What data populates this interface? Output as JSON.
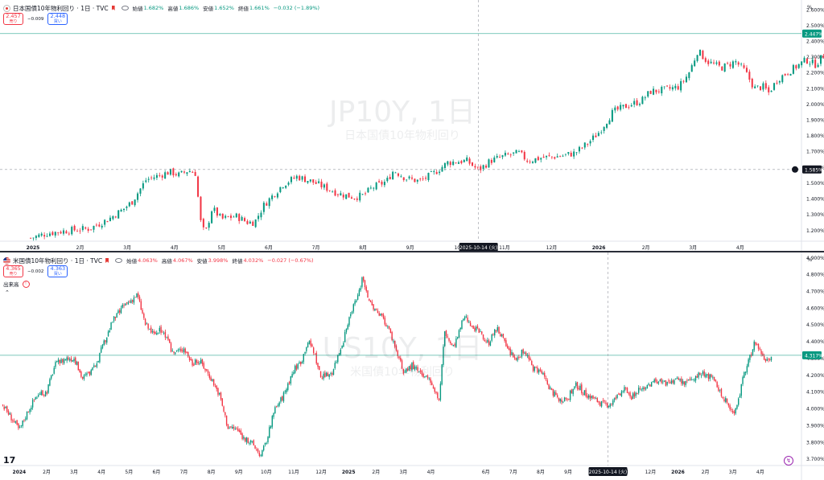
{
  "top_pane": {
    "title": "日本国債10年物利回り · 1日 · TVC",
    "ohlc": [
      {
        "label": "始値",
        "value": "1.682%",
        "color": "#089981"
      },
      {
        "label": "高値",
        "value": "1.686%",
        "color": "#089981"
      },
      {
        "label": "安値",
        "value": "1.652%",
        "color": "#089981"
      },
      {
        "label": "終値",
        "value": "1.661%",
        "color": "#089981"
      }
    ],
    "change": "−0.032 (−1.89%)",
    "sell_price": "2.457",
    "sell_label": "売り",
    "spread": "−0.009",
    "buy_price": "2.448",
    "buy_label": "買い",
    "watermark_main": "JP10Y, 1日",
    "watermark_sub": "日本国債10年物利回り",
    "pct_unit": "%",
    "last_price_label": "2.447%",
    "crosshair_price_label": "1.585%",
    "crosshair_date_label": "2025-10-14 (火)"
  },
  "bottom_pane": {
    "title": "米国債10年物利回り · 1日 · TVC",
    "ohlc": [
      {
        "label": "始値",
        "value": "4.063%",
        "color": "#f23645"
      },
      {
        "label": "高値",
        "value": "4.067%",
        "color": "#f23645"
      },
      {
        "label": "安値",
        "value": "3.998%",
        "color": "#f23645"
      },
      {
        "label": "終値",
        "value": "4.032%",
        "color": "#f23645"
      }
    ],
    "change": "−0.027 (−0.67%)",
    "sell_price": "4.365",
    "sell_label": "売り",
    "spread": "−0.002",
    "buy_price": "4.363",
    "buy_label": "買い",
    "volume_label": "出来高",
    "volume_badge": "!",
    "watermark_main": "US10Y, 1日",
    "watermark_sub": "米国債10年物利回り",
    "pct_unit": "%",
    "last_price_label": "4.317%",
    "crosshair_date_label": "2025-10-14 (火)",
    "logo": "17"
  },
  "chart_data": [
    {
      "type": "candlestick",
      "title": "日本国債10年物利回り · 1日 · TVC",
      "y_unit": "%",
      "ylim": [
        1.13,
        2.66
      ],
      "y_ticks": [
        "1.200%",
        "1.300%",
        "1.400%",
        "1.500%",
        "1.600%",
        "1.700%",
        "1.800%",
        "1.900%",
        "2.000%",
        "2.100%",
        "2.200%",
        "2.300%",
        "2.400%",
        "2.500%",
        "2.600%"
      ],
      "y_tick_values": [
        1.2,
        1.3,
        1.4,
        1.5,
        1.6,
        1.7,
        1.8,
        1.9,
        2.0,
        2.1,
        2.2,
        2.3,
        2.4,
        2.5,
        2.6
      ],
      "x_ticks": [
        "2025",
        "2月",
        "3月",
        "4月",
        "5月",
        "6月",
        "7月",
        "8月",
        "9月",
        "10",
        "11月",
        "12月",
        "2026",
        "2月",
        "3月",
        "4月"
      ],
      "x_tick_months": [
        0,
        1,
        2,
        3,
        4,
        5,
        6,
        7,
        8,
        9,
        10,
        11,
        12,
        13,
        14,
        15
      ],
      "x_range_months": [
        -0.7,
        16.3
      ],
      "last_value": 2.447,
      "crosshair_value": 1.585,
      "crosshair_month": 9.45,
      "grid": false,
      "close_path": [
        [
          -0.05,
          1.15
        ],
        [
          0.3,
          1.18
        ],
        [
          0.8,
          1.2
        ],
        [
          1.2,
          1.21
        ],
        [
          1.6,
          1.27
        ],
        [
          1.9,
          1.33
        ],
        [
          2.1,
          1.38
        ],
        [
          2.4,
          1.52
        ],
        [
          2.7,
          1.55
        ],
        [
          2.9,
          1.57
        ],
        [
          3.1,
          1.55
        ],
        [
          3.3,
          1.58
        ],
        [
          3.45,
          1.56
        ],
        [
          3.55,
          1.26
        ],
        [
          3.65,
          1.17
        ],
        [
          3.8,
          1.34
        ],
        [
          4.0,
          1.27
        ],
        [
          4.3,
          1.29
        ],
        [
          4.55,
          1.25
        ],
        [
          4.7,
          1.25
        ],
        [
          4.9,
          1.36
        ],
        [
          5.3,
          1.49
        ],
        [
          5.6,
          1.54
        ],
        [
          5.9,
          1.51
        ],
        [
          6.2,
          1.47
        ],
        [
          6.5,
          1.43
        ],
        [
          6.8,
          1.41
        ],
        [
          7.0,
          1.42
        ],
        [
          7.2,
          1.47
        ],
        [
          7.5,
          1.51
        ],
        [
          7.65,
          1.58
        ],
        [
          7.9,
          1.53
        ],
        [
          8.2,
          1.51
        ],
        [
          8.5,
          1.56
        ],
        [
          8.8,
          1.63
        ],
        [
          9.2,
          1.64
        ],
        [
          9.45,
          1.58
        ],
        [
          9.7,
          1.64
        ],
        [
          10.0,
          1.67
        ],
        [
          10.3,
          1.69
        ],
        [
          10.5,
          1.64
        ],
        [
          10.8,
          1.66
        ],
        [
          11.2,
          1.67
        ],
        [
          11.5,
          1.69
        ],
        [
          11.8,
          1.76
        ],
        [
          12.0,
          1.82
        ],
        [
          12.3,
          1.95
        ],
        [
          12.6,
          1.99
        ],
        [
          12.9,
          2.02
        ],
        [
          13.1,
          2.08
        ],
        [
          13.4,
          2.09
        ],
        [
          13.7,
          2.11
        ],
        [
          13.9,
          2.19
        ],
        [
          14.0,
          2.26
        ],
        [
          14.1,
          2.34
        ],
        [
          14.3,
          2.27
        ],
        [
          14.6,
          2.23
        ],
        [
          14.9,
          2.27
        ],
        [
          15.1,
          2.21
        ],
        [
          15.3,
          2.1
        ],
        [
          15.5,
          2.11
        ],
        [
          15.6,
          2.07
        ],
        [
          15.8,
          2.16
        ],
        [
          16.0,
          2.2
        ],
        [
          16.2,
          2.24
        ],
        [
          16.4,
          2.28
        ],
        [
          16.6,
          2.25
        ],
        [
          16.8,
          2.32
        ],
        [
          17.0,
          2.37
        ],
        [
          17.1,
          2.35
        ],
        [
          17.25,
          2.43
        ],
        [
          17.35,
          2.447
        ]
      ]
    },
    {
      "type": "candlestick",
      "title": "米国債10年物利回り · 1日 · TVC",
      "y_unit": "%",
      "ylim": [
        3.66,
        4.93
      ],
      "y_ticks": [
        "3.700%",
        "3.800%",
        "3.900%",
        "4.000%",
        "4.100%",
        "4.200%",
        "4.300%",
        "4.400%",
        "4.500%",
        "4.600%",
        "4.700%",
        "4.800%",
        "4.900%"
      ],
      "y_tick_values": [
        3.7,
        3.8,
        3.9,
        4.0,
        4.1,
        4.2,
        4.3,
        4.4,
        4.5,
        4.6,
        4.7,
        4.8,
        4.9
      ],
      "x_ticks": [
        "2024",
        "2月",
        "3月",
        "4月",
        "5月",
        "6月",
        "7月",
        "8月",
        "9月",
        "10月",
        "11月",
        "12月",
        "2025",
        "2月",
        "3月",
        "4月",
        "6月",
        "7月",
        "8月",
        "9月",
        "11月",
        "12月",
        "2026",
        "2月",
        "3月",
        "4月"
      ],
      "x_tick_months": [
        0,
        1,
        2,
        3,
        4,
        5,
        6,
        7,
        8,
        9,
        10,
        11,
        12,
        13,
        14,
        15,
        17,
        18,
        19,
        20,
        22,
        23,
        24,
        25,
        26,
        27
      ],
      "x_range_months": [
        -0.7,
        28.5
      ],
      "last_value": 4.317,
      "crosshair_month": 21.45,
      "grid": false,
      "close_path": [
        [
          -0.6,
          4.02
        ],
        [
          -0.3,
          3.95
        ],
        [
          0.0,
          3.87
        ],
        [
          0.3,
          3.98
        ],
        [
          0.6,
          4.07
        ],
        [
          1.0,
          4.1
        ],
        [
          1.3,
          4.26
        ],
        [
          1.7,
          4.3
        ],
        [
          2.0,
          4.3
        ],
        [
          2.3,
          4.18
        ],
        [
          2.7,
          4.23
        ],
        [
          3.0,
          4.35
        ],
        [
          3.4,
          4.52
        ],
        [
          3.8,
          4.61
        ],
        [
          4.1,
          4.65
        ],
        [
          4.3,
          4.68
        ],
        [
          4.6,
          4.5
        ],
        [
          4.9,
          4.44
        ],
        [
          5.2,
          4.47
        ],
        [
          5.6,
          4.33
        ],
        [
          6.0,
          4.36
        ],
        [
          6.3,
          4.27
        ],
        [
          6.6,
          4.28
        ],
        [
          7.0,
          4.18
        ],
        [
          7.3,
          4.08
        ],
        [
          7.6,
          3.89
        ],
        [
          7.9,
          3.88
        ],
        [
          8.2,
          3.82
        ],
        [
          8.5,
          3.79
        ],
        [
          8.8,
          3.72
        ],
        [
          9.0,
          3.8
        ],
        [
          9.3,
          3.99
        ],
        [
          9.6,
          4.07
        ],
        [
          10.0,
          4.23
        ],
        [
          10.3,
          4.29
        ],
        [
          10.5,
          4.4
        ],
        [
          10.7,
          4.36
        ],
        [
          11.0,
          4.18
        ],
        [
          11.4,
          4.22
        ],
        [
          11.8,
          4.4
        ],
        [
          12.1,
          4.57
        ],
        [
          12.4,
          4.7
        ],
        [
          12.5,
          4.79
        ],
        [
          12.8,
          4.62
        ],
        [
          13.1,
          4.56
        ],
        [
          13.4,
          4.5
        ],
        [
          13.7,
          4.37
        ],
        [
          14.0,
          4.21
        ],
        [
          14.3,
          4.26
        ],
        [
          14.7,
          4.19
        ],
        [
          15.0,
          4.16
        ],
        [
          15.3,
          4.05
        ],
        [
          15.5,
          4.46
        ],
        [
          15.8,
          4.36
        ],
        [
          16.0,
          4.44
        ],
        [
          16.2,
          4.55
        ],
        [
          16.5,
          4.5
        ],
        [
          16.8,
          4.44
        ],
        [
          17.1,
          4.39
        ],
        [
          17.4,
          4.48
        ],
        [
          17.8,
          4.35
        ],
        [
          18.1,
          4.29
        ],
        [
          18.4,
          4.35
        ],
        [
          18.7,
          4.24
        ],
        [
          19.0,
          4.22
        ],
        [
          19.4,
          4.1
        ],
        [
          19.7,
          4.05
        ],
        [
          20.0,
          4.07
        ],
        [
          20.3,
          4.14
        ],
        [
          20.6,
          4.09
        ],
        [
          20.9,
          4.06
        ],
        [
          21.2,
          4.03
        ],
        [
          21.45,
          4.02
        ],
        [
          21.7,
          4.05
        ],
        [
          22.0,
          4.12
        ],
        [
          22.3,
          4.07
        ],
        [
          22.6,
          4.11
        ],
        [
          23.0,
          4.15
        ],
        [
          23.3,
          4.17
        ],
        [
          23.6,
          4.14
        ],
        [
          24.0,
          4.17
        ],
        [
          24.3,
          4.15
        ],
        [
          24.6,
          4.19
        ],
        [
          25.0,
          4.21
        ],
        [
          25.3,
          4.17
        ],
        [
          25.6,
          4.08
        ],
        [
          25.8,
          4.03
        ],
        [
          26.0,
          3.97
        ],
        [
          26.2,
          4.05
        ],
        [
          26.4,
          4.2
        ],
        [
          26.6,
          4.29
        ],
        [
          26.8,
          4.4
        ],
        [
          27.0,
          4.34
        ],
        [
          27.2,
          4.29
        ],
        [
          27.4,
          4.317
        ]
      ]
    }
  ]
}
